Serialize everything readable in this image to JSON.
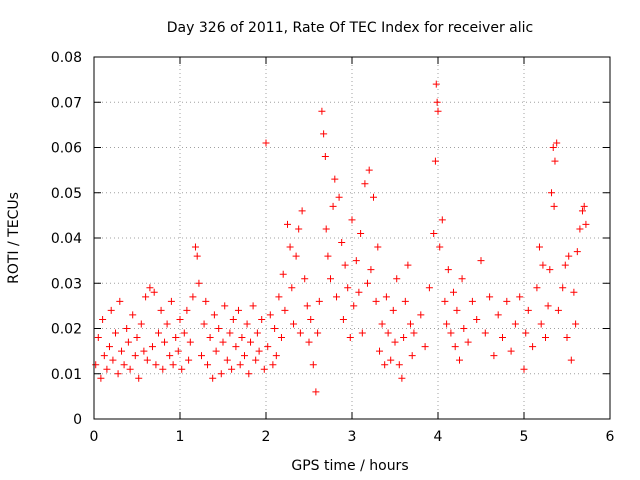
{
  "chart_data": {
    "type": "scatter",
    "title": "Day 326 of 2011, Rate Of TEC Index for receiver alic",
    "xlabel": "GPS time / hours",
    "ylabel": "ROTI / TECUs",
    "xlim": [
      0,
      6
    ],
    "ylim": [
      0,
      0.08
    ],
    "xticks": [
      0,
      1,
      2,
      3,
      4,
      5,
      6
    ],
    "yticks": [
      0,
      0.01,
      0.02,
      0.03,
      0.04,
      0.05,
      0.06,
      0.07,
      0.08
    ],
    "xtick_labels": [
      "0",
      "1",
      "2",
      "3",
      "4",
      "5",
      "6"
    ],
    "ytick_labels": [
      "0",
      "0.01",
      "0.02",
      "0.03",
      "0.04",
      "0.05",
      "0.06",
      "0.07",
      "0.08"
    ],
    "grid": true,
    "marker": "+",
    "color": "#ff0000",
    "series": [
      {
        "name": "ROTI",
        "points": [
          [
            0.02,
            0.012
          ],
          [
            0.05,
            0.018
          ],
          [
            0.08,
            0.009
          ],
          [
            0.1,
            0.022
          ],
          [
            0.12,
            0.014
          ],
          [
            0.15,
            0.011
          ],
          [
            0.18,
            0.016
          ],
          [
            0.2,
            0.024
          ],
          [
            0.22,
            0.013
          ],
          [
            0.25,
            0.019
          ],
          [
            0.28,
            0.01
          ],
          [
            0.3,
            0.026
          ],
          [
            0.32,
            0.015
          ],
          [
            0.35,
            0.012
          ],
          [
            0.38,
            0.02
          ],
          [
            0.4,
            0.017
          ],
          [
            0.42,
            0.011
          ],
          [
            0.45,
            0.023
          ],
          [
            0.48,
            0.014
          ],
          [
            0.5,
            0.018
          ],
          [
            0.52,
            0.009
          ],
          [
            0.55,
            0.021
          ],
          [
            0.58,
            0.015
          ],
          [
            0.6,
            0.027
          ],
          [
            0.62,
            0.013
          ],
          [
            0.65,
            0.029
          ],
          [
            0.68,
            0.016
          ],
          [
            0.7,
            0.028
          ],
          [
            0.72,
            0.012
          ],
          [
            0.75,
            0.019
          ],
          [
            0.78,
            0.024
          ],
          [
            0.8,
            0.011
          ],
          [
            0.82,
            0.017
          ],
          [
            0.85,
            0.021
          ],
          [
            0.88,
            0.014
          ],
          [
            0.9,
            0.026
          ],
          [
            0.92,
            0.012
          ],
          [
            0.95,
            0.018
          ],
          [
            0.98,
            0.015
          ],
          [
            1.0,
            0.022
          ],
          [
            1.02,
            0.011
          ],
          [
            1.05,
            0.019
          ],
          [
            1.08,
            0.024
          ],
          [
            1.1,
            0.013
          ],
          [
            1.12,
            0.017
          ],
          [
            1.15,
            0.027
          ],
          [
            1.18,
            0.038
          ],
          [
            1.2,
            0.036
          ],
          [
            1.22,
            0.03
          ],
          [
            1.25,
            0.014
          ],
          [
            1.28,
            0.021
          ],
          [
            1.3,
            0.026
          ],
          [
            1.32,
            0.012
          ],
          [
            1.35,
            0.018
          ],
          [
            1.38,
            0.009
          ],
          [
            1.4,
            0.023
          ],
          [
            1.42,
            0.015
          ],
          [
            1.45,
            0.02
          ],
          [
            1.48,
            0.01
          ],
          [
            1.5,
            0.017
          ],
          [
            1.52,
            0.025
          ],
          [
            1.55,
            0.013
          ],
          [
            1.58,
            0.019
          ],
          [
            1.6,
            0.011
          ],
          [
            1.62,
            0.022
          ],
          [
            1.65,
            0.016
          ],
          [
            1.68,
            0.024
          ],
          [
            1.7,
            0.012
          ],
          [
            1.72,
            0.018
          ],
          [
            1.75,
            0.014
          ],
          [
            1.78,
            0.021
          ],
          [
            1.8,
            0.01
          ],
          [
            1.82,
            0.017
          ],
          [
            1.85,
            0.025
          ],
          [
            1.88,
            0.013
          ],
          [
            1.9,
            0.019
          ],
          [
            1.92,
            0.015
          ],
          [
            1.95,
            0.022
          ],
          [
            1.98,
            0.011
          ],
          [
            2.0,
            0.061
          ],
          [
            2.02,
            0.016
          ],
          [
            2.05,
            0.023
          ],
          [
            2.08,
            0.012
          ],
          [
            2.1,
            0.02
          ],
          [
            2.12,
            0.014
          ],
          [
            2.15,
            0.027
          ],
          [
            2.18,
            0.018
          ],
          [
            2.2,
            0.032
          ],
          [
            2.22,
            0.024
          ],
          [
            2.25,
            0.043
          ],
          [
            2.28,
            0.038
          ],
          [
            2.3,
            0.029
          ],
          [
            2.32,
            0.021
          ],
          [
            2.35,
            0.036
          ],
          [
            2.38,
            0.042
          ],
          [
            2.4,
            0.019
          ],
          [
            2.42,
            0.046
          ],
          [
            2.45,
            0.031
          ],
          [
            2.48,
            0.025
          ],
          [
            2.5,
            0.017
          ],
          [
            2.52,
            0.022
          ],
          [
            2.55,
            0.012
          ],
          [
            2.58,
            0.006
          ],
          [
            2.6,
            0.019
          ],
          [
            2.62,
            0.026
          ],
          [
            2.65,
            0.068
          ],
          [
            2.67,
            0.063
          ],
          [
            2.69,
            0.058
          ],
          [
            2.7,
            0.042
          ],
          [
            2.72,
            0.036
          ],
          [
            2.75,
            0.031
          ],
          [
            2.78,
            0.047
          ],
          [
            2.8,
            0.053
          ],
          [
            2.82,
            0.027
          ],
          [
            2.85,
            0.049
          ],
          [
            2.88,
            0.039
          ],
          [
            2.9,
            0.022
          ],
          [
            2.92,
            0.034
          ],
          [
            2.95,
            0.029
          ],
          [
            2.98,
            0.018
          ],
          [
            3.0,
            0.044
          ],
          [
            3.02,
            0.025
          ],
          [
            3.05,
            0.035
          ],
          [
            3.08,
            0.028
          ],
          [
            3.1,
            0.041
          ],
          [
            3.12,
            0.019
          ],
          [
            3.15,
            0.052
          ],
          [
            3.18,
            0.03
          ],
          [
            3.2,
            0.055
          ],
          [
            3.22,
            0.033
          ],
          [
            3.25,
            0.049
          ],
          [
            3.28,
            0.026
          ],
          [
            3.3,
            0.038
          ],
          [
            3.32,
            0.015
          ],
          [
            3.35,
            0.021
          ],
          [
            3.38,
            0.012
          ],
          [
            3.4,
            0.027
          ],
          [
            3.42,
            0.019
          ],
          [
            3.45,
            0.013
          ],
          [
            3.48,
            0.024
          ],
          [
            3.5,
            0.017
          ],
          [
            3.52,
            0.031
          ],
          [
            3.55,
            0.012
          ],
          [
            3.58,
            0.009
          ],
          [
            3.6,
            0.018
          ],
          [
            3.62,
            0.026
          ],
          [
            3.65,
            0.034
          ],
          [
            3.68,
            0.021
          ],
          [
            3.7,
            0.014
          ],
          [
            3.72,
            0.019
          ],
          [
            3.8,
            0.023
          ],
          [
            3.85,
            0.016
          ],
          [
            3.9,
            0.029
          ],
          [
            3.95,
            0.041
          ],
          [
            3.97,
            0.057
          ],
          [
            3.98,
            0.074
          ],
          [
            3.99,
            0.07
          ],
          [
            4.0,
            0.068
          ],
          [
            4.02,
            0.038
          ],
          [
            4.05,
            0.044
          ],
          [
            4.08,
            0.026
          ],
          [
            4.1,
            0.021
          ],
          [
            4.12,
            0.033
          ],
          [
            4.15,
            0.019
          ],
          [
            4.18,
            0.028
          ],
          [
            4.2,
            0.016
          ],
          [
            4.22,
            0.024
          ],
          [
            4.25,
            0.013
          ],
          [
            4.28,
            0.031
          ],
          [
            4.3,
            0.02
          ],
          [
            4.35,
            0.017
          ],
          [
            4.4,
            0.026
          ],
          [
            4.45,
            0.022
          ],
          [
            4.5,
            0.035
          ],
          [
            4.55,
            0.019
          ],
          [
            4.6,
            0.027
          ],
          [
            4.65,
            0.014
          ],
          [
            4.7,
            0.023
          ],
          [
            4.75,
            0.018
          ],
          [
            4.8,
            0.026
          ],
          [
            4.85,
            0.015
          ],
          [
            4.9,
            0.021
          ],
          [
            4.95,
            0.027
          ],
          [
            5.0,
            0.011
          ],
          [
            5.02,
            0.019
          ],
          [
            5.05,
            0.024
          ],
          [
            5.1,
            0.016
          ],
          [
            5.15,
            0.029
          ],
          [
            5.18,
            0.038
          ],
          [
            5.2,
            0.021
          ],
          [
            5.22,
            0.034
          ],
          [
            5.25,
            0.018
          ],
          [
            5.28,
            0.025
          ],
          [
            5.3,
            0.033
          ],
          [
            5.32,
            0.05
          ],
          [
            5.34,
            0.06
          ],
          [
            5.35,
            0.047
          ],
          [
            5.36,
            0.057
          ],
          [
            5.38,
            0.061
          ],
          [
            5.4,
            0.024
          ],
          [
            5.45,
            0.029
          ],
          [
            5.48,
            0.034
          ],
          [
            5.5,
            0.018
          ],
          [
            5.52,
            0.036
          ],
          [
            5.55,
            0.013
          ],
          [
            5.58,
            0.028
          ],
          [
            5.6,
            0.021
          ],
          [
            5.62,
            0.037
          ],
          [
            5.65,
            0.042
          ],
          [
            5.68,
            0.046
          ],
          [
            5.7,
            0.047
          ],
          [
            5.72,
            0.043
          ]
        ]
      }
    ]
  }
}
